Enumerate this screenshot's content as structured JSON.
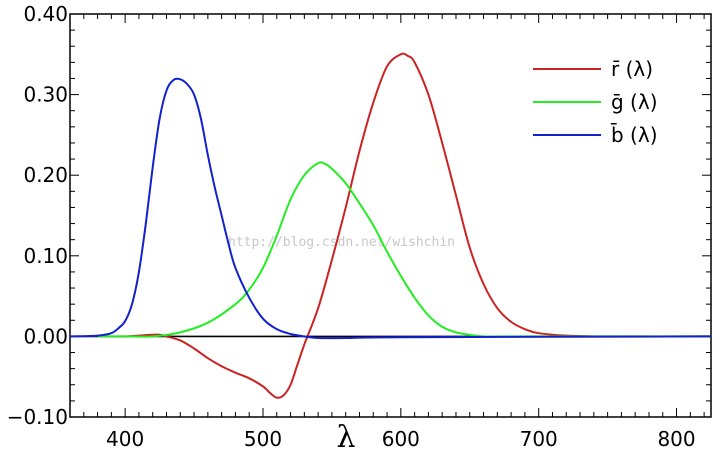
{
  "chart_data": {
    "type": "line",
    "xlabel": "λ",
    "ylabel": "",
    "xlim": [
      360,
      825
    ],
    "ylim": [
      -0.1,
      0.4
    ],
    "xticks": [
      400,
      500,
      600,
      700,
      800
    ],
    "yticks": [
      "0.40",
      "0.30",
      "0.20",
      "0.10",
      "0.00",
      "−0.10"
    ],
    "yticks_values": [
      0.4,
      0.3,
      0.2,
      0.1,
      0.0,
      -0.1
    ],
    "legend_position": "top-right",
    "grid": false,
    "zero_line": true,
    "watermark": "http://blog.csdn.net/wishchin",
    "series": [
      {
        "name": "r̄ (λ)",
        "color": "#cc2222",
        "x": [
          380,
          400,
          410,
          420,
          425,
          430,
          440,
          450,
          460,
          470,
          480,
          490,
          500,
          505,
          510,
          515,
          520,
          525,
          530,
          540,
          550,
          560,
          570,
          580,
          590,
          600,
          605,
          610,
          620,
          630,
          640,
          650,
          660,
          670,
          680,
          690,
          700,
          720,
          750,
          825
        ],
        "y": [
          0.0,
          0.0,
          0.001,
          0.002,
          0.002,
          0.0,
          -0.005,
          -0.015,
          -0.027,
          -0.037,
          -0.045,
          -0.052,
          -0.062,
          -0.07,
          -0.076,
          -0.073,
          -0.06,
          -0.035,
          -0.01,
          0.035,
          0.095,
          0.16,
          0.23,
          0.29,
          0.335,
          0.35,
          0.348,
          0.34,
          0.3,
          0.24,
          0.175,
          0.11,
          0.065,
          0.035,
          0.018,
          0.009,
          0.004,
          0.001,
          0.0,
          0.0
        ]
      },
      {
        "name": "ḡ (λ)",
        "color": "#22ee22",
        "x": [
          380,
          400,
          420,
          440,
          460,
          480,
          490,
          500,
          510,
          520,
          530,
          540,
          545,
          550,
          560,
          570,
          580,
          590,
          600,
          610,
          620,
          630,
          640,
          650,
          660,
          680,
          825
        ],
        "y": [
          0.0,
          0.0,
          0.0,
          0.005,
          0.017,
          0.04,
          0.058,
          0.085,
          0.125,
          0.17,
          0.2,
          0.215,
          0.214,
          0.208,
          0.19,
          0.165,
          0.138,
          0.105,
          0.075,
          0.048,
          0.026,
          0.012,
          0.005,
          0.002,
          0.0,
          0.0,
          0.0
        ]
      },
      {
        "name": "b̄ (λ)",
        "color": "#1122cc",
        "x": [
          360,
          380,
          390,
          395,
          400,
          405,
          410,
          415,
          420,
          425,
          430,
          435,
          440,
          445,
          450,
          455,
          460,
          465,
          470,
          475,
          480,
          490,
          500,
          510,
          520,
          530,
          540,
          560,
          600,
          825
        ],
        "y": [
          0.0,
          0.001,
          0.004,
          0.01,
          0.019,
          0.04,
          0.08,
          0.14,
          0.21,
          0.27,
          0.305,
          0.318,
          0.319,
          0.313,
          0.3,
          0.27,
          0.225,
          0.185,
          0.15,
          0.115,
          0.085,
          0.048,
          0.022,
          0.009,
          0.003,
          0.0,
          -0.002,
          -0.002,
          -0.001,
          0.0
        ]
      }
    ]
  }
}
